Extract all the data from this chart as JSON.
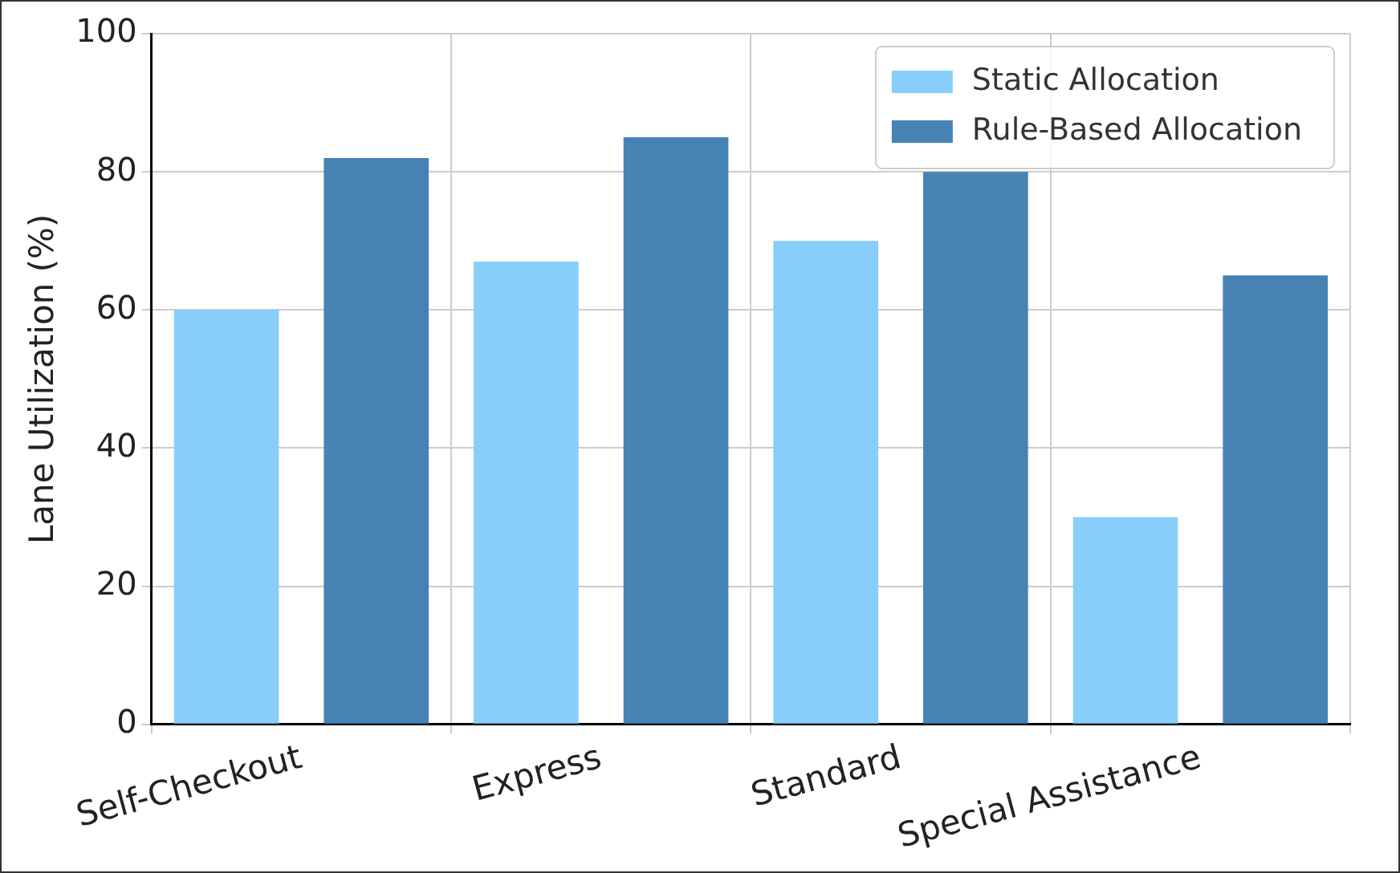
{
  "chart_data": {
    "type": "bar",
    "ylabel": "Lane Utilization (%)",
    "categories": [
      "Self-Checkout",
      "Express",
      "Standard",
      "Special Assistance"
    ],
    "series": [
      {
        "name": "Static Allocation",
        "color": "#87cefa",
        "values": [
          60,
          67,
          70,
          30
        ]
      },
      {
        "name": "Rule-Based Allocation",
        "color": "#4682b4",
        "values": [
          82,
          85,
          80,
          65
        ]
      }
    ],
    "ylim": [
      0,
      100
    ],
    "yticks": [
      0,
      20,
      40,
      60,
      80,
      100
    ],
    "grid": true,
    "legend": "top right"
  }
}
